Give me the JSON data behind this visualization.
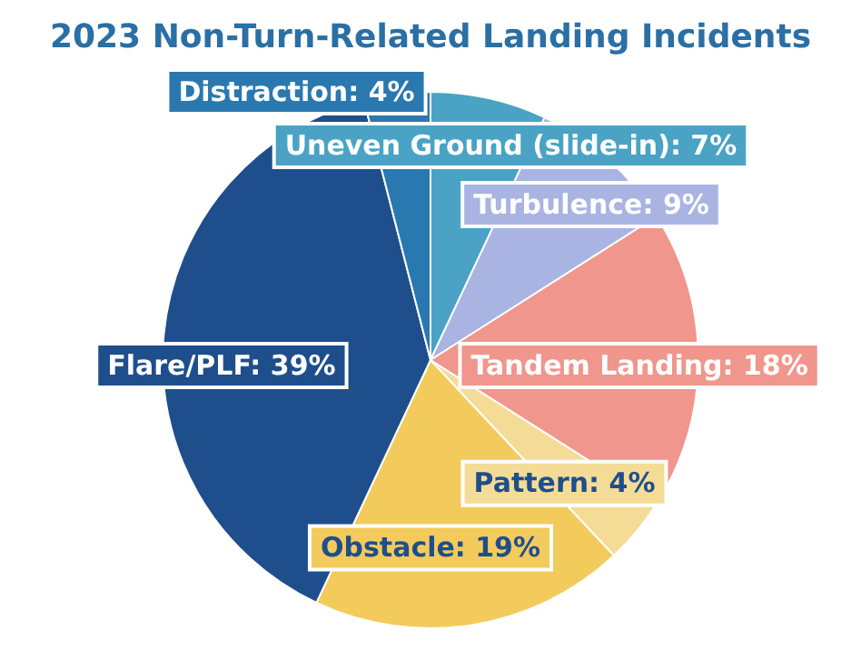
{
  "chart_data": {
    "type": "pie",
    "title": "2023 Non-Turn-Related Landing Incidents",
    "categories": [
      "Uneven Ground (slide-in)",
      "Turbulence",
      "Tandem Landing",
      "Pattern",
      "Obstacle",
      "Flare/PLF",
      "Distraction"
    ],
    "values": [
      7,
      9,
      18,
      4,
      19,
      39,
      4
    ],
    "value_labels": [
      "7%",
      "9%",
      "18%",
      "4%",
      "19%",
      "39%",
      "4%"
    ],
    "colors": [
      "#4aa3c4",
      "#a9b4e2",
      "#f0968c",
      "#f5dc96",
      "#f3cb5c",
      "#1f4e8c",
      "#2a78b0"
    ],
    "legend": false
  }
}
